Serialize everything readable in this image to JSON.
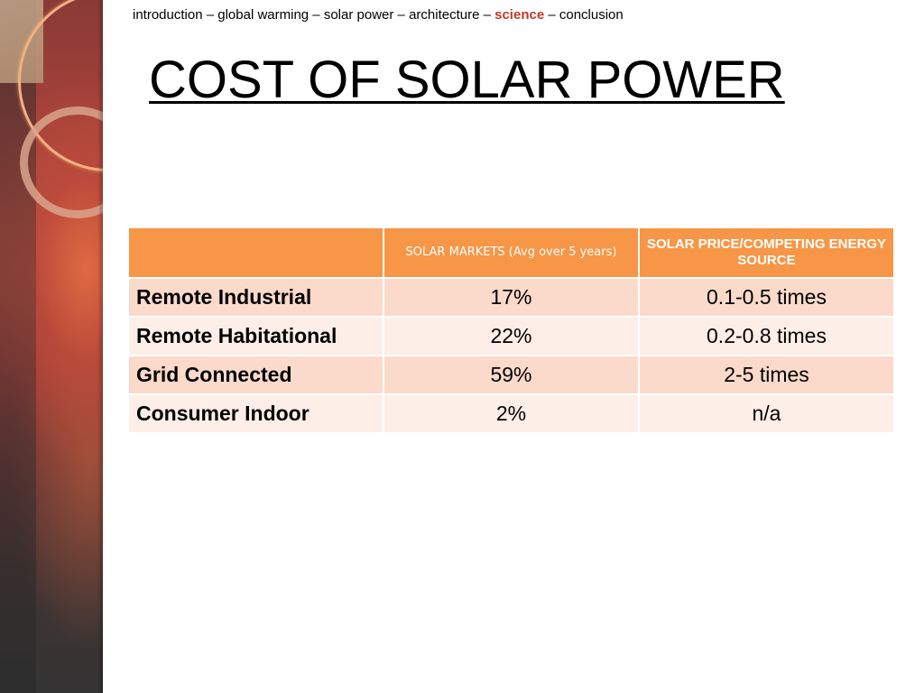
{
  "breadcrumb": {
    "items": [
      {
        "label": "introduction",
        "active": false
      },
      {
        "label": "global warming",
        "active": false
      },
      {
        "label": "solar power",
        "active": false
      },
      {
        "label": "architecture",
        "active": false
      },
      {
        "label": "science",
        "active": true
      },
      {
        "label": "conclusion",
        "active": false
      }
    ],
    "separator": " – "
  },
  "title": "COST OF SOLAR POWER",
  "table": {
    "headers": [
      "",
      "SOLAR MARKETS (Avg over 5 years)",
      "SOLAR PRICE/COMPETING ENERGY     SOURCE"
    ],
    "rows": [
      [
        "Remote Industrial",
        "17%",
        "0.1-0.5 times"
      ],
      [
        "Remote Habitational",
        "22%",
        "0.2-0.8 times"
      ],
      [
        "Grid Connected",
        "59%",
        "2-5 times"
      ],
      [
        "Consumer Indoor",
        "2%",
        "n/a"
      ]
    ]
  },
  "colors": {
    "header_fill": "#f79646",
    "row_odd": "#fbdacb",
    "row_even": "#fdeee8",
    "active_nav": "#c0392b"
  }
}
